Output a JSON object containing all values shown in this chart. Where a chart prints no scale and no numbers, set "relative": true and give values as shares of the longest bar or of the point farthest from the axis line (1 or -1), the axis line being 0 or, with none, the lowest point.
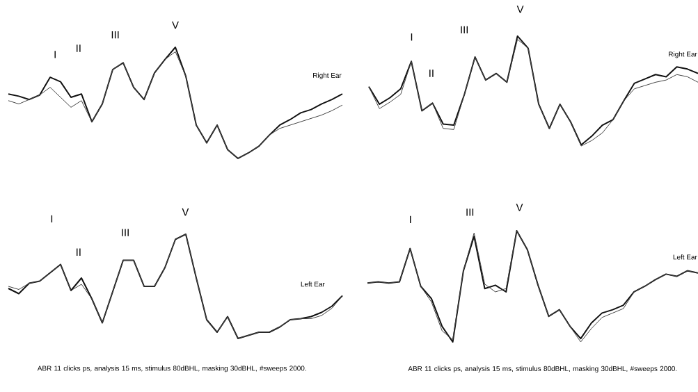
{
  "chart_data": [
    {
      "type": "line",
      "relative": true,
      "categories": [
        null,
        null,
        null,
        null,
        null,
        null,
        null,
        null,
        null,
        null,
        null,
        null,
        null,
        null,
        null,
        null,
        null,
        null,
        null,
        null,
        null,
        null,
        null,
        null,
        null,
        null,
        null,
        null,
        null,
        null,
        null,
        null,
        null
      ],
      "series": [
        {
          "color": "#111111",
          "values": [
            0.58,
            0.56,
            0.53,
            0.57,
            0.73,
            0.69,
            0.55,
            0.58,
            0.33,
            0.49,
            0.8,
            0.86,
            0.64,
            0.53,
            0.77,
            0.89,
            1,
            0.74,
            0.3,
            0.14,
            0.3,
            0.08,
            0,
            0.05,
            0.11,
            0.21,
            0.3,
            0.35,
            0.41,
            0.44,
            0.49,
            0.53,
            0.58
          ]
        },
        {
          "color": "#444444",
          "values": [
            0.52,
            0.49,
            0.53,
            0.57,
            0.64,
            0.55,
            0.46,
            0.52,
            0.33,
            0.49,
            0.8,
            0.86,
            0.64,
            0.53,
            0.77,
            0.89,
            0.96,
            0.74,
            0.3,
            0.14,
            0.3,
            0.08,
            0,
            0.05,
            0.11,
            0.21,
            0.27,
            0.3,
            0.33,
            0.36,
            0.39,
            0.43,
            0.48
          ]
        }
      ],
      "annotations": [
        "I",
        "II",
        "III",
        "V",
        "Right Ear"
      ]
    },
    {
      "type": "line",
      "relative": true,
      "categories": [
        null,
        null,
        null,
        null,
        null,
        null,
        null,
        null,
        null,
        null,
        null,
        null,
        null,
        null,
        null,
        null,
        null,
        null,
        null,
        null,
        null,
        null,
        null,
        null,
        null,
        null,
        null,
        null,
        null,
        null,
        null,
        null
      ],
      "series": [
        {
          "color": "#111111",
          "values": [
            0.54,
            0.38,
            0.44,
            0.52,
            0.77,
            0.32,
            0.39,
            0.2,
            0.19,
            0.47,
            0.81,
            0.6,
            0.66,
            0.58,
            1,
            0.89,
            0.38,
            0.16,
            0.38,
            0.22,
            0.01,
            0.09,
            0.19,
            0.24,
            0.41,
            0.57,
            0.61,
            0.65,
            0.63,
            0.72,
            0.7,
            0.66
          ]
        },
        {
          "color": "#444444",
          "values": [
            0.54,
            0.34,
            0.4,
            0.47,
            0.77,
            0.32,
            0.39,
            0.16,
            0.15,
            0.47,
            0.81,
            0.6,
            0.66,
            0.58,
            0.97,
            0.89,
            0.38,
            0.16,
            0.38,
            0.22,
            0,
            0.05,
            0.12,
            0.24,
            0.41,
            0.52,
            0.55,
            0.58,
            0.6,
            0.65,
            0.63,
            0.58
          ]
        }
      ],
      "annotations": [
        "I",
        "II",
        "III",
        "V",
        "Right Ear"
      ]
    },
    {
      "type": "line",
      "relative": true,
      "categories": [
        null,
        null,
        null,
        null,
        null,
        null,
        null,
        null,
        null,
        null,
        null,
        null,
        null,
        null,
        null,
        null,
        null,
        null,
        null,
        null,
        null,
        null,
        null,
        null,
        null,
        null,
        null,
        null,
        null,
        null,
        null,
        null,
        null
      ],
      "series": [
        {
          "color": "#111111",
          "values": [
            0.48,
            0.43,
            0.53,
            0.55,
            0.63,
            0.71,
            0.46,
            0.58,
            0.38,
            0.15,
            0.45,
            0.75,
            0.75,
            0.5,
            0.5,
            0.68,
            0.95,
            1,
            0.58,
            0.18,
            0.06,
            0.21,
            0,
            0.03,
            0.06,
            0.06,
            0.11,
            0.18,
            0.19,
            0.21,
            0.25,
            0.31,
            0.41
          ]
        },
        {
          "color": "#444444",
          "values": [
            0.5,
            0.47,
            0.53,
            0.55,
            0.63,
            0.71,
            0.46,
            0.52,
            0.38,
            0.15,
            0.45,
            0.75,
            0.75,
            0.5,
            0.5,
            0.68,
            0.95,
            1,
            0.58,
            0.18,
            0.06,
            0.21,
            0,
            0.03,
            0.06,
            0.06,
            0.11,
            0.18,
            0.19,
            0.19,
            0.22,
            0.29,
            0.41
          ]
        }
      ],
      "annotations": [
        "I",
        "II",
        "III",
        "V",
        "Left Ear",
        "ABR 11 clicks ps, analysis 15 ms, stimulus 80dBHL, masking 30dBHL, #sweeps 2000."
      ]
    },
    {
      "type": "line",
      "relative": true,
      "categories": [
        null,
        null,
        null,
        null,
        null,
        null,
        null,
        null,
        null,
        null,
        null,
        null,
        null,
        null,
        null,
        null,
        null,
        null,
        null,
        null,
        null,
        null,
        null,
        null,
        null,
        null,
        null,
        null,
        null,
        null,
        null,
        null
      ],
      "series": [
        {
          "color": "#111111",
          "values": [
            0.53,
            0.54,
            0.53,
            0.54,
            0.84,
            0.5,
            0.39,
            0.14,
            0,
            0.64,
            0.95,
            0.48,
            0.51,
            0.45,
            1,
            0.83,
            0.51,
            0.23,
            0.29,
            0.14,
            0.03,
            0.17,
            0.26,
            0.29,
            0.33,
            0.45,
            0.5,
            0.56,
            0.61,
            0.59,
            0.64,
            0.62
          ]
        },
        {
          "color": "#444444",
          "values": [
            0.53,
            0.54,
            0.53,
            0.54,
            0.84,
            0.5,
            0.36,
            0.1,
            0.02,
            0.64,
            0.98,
            0.52,
            0.45,
            0.48,
            1,
            0.83,
            0.51,
            0.23,
            0.29,
            0.14,
            0,
            0.12,
            0.22,
            0.26,
            0.3,
            0.45,
            0.5,
            0.56,
            0.61,
            0.59,
            0.64,
            0.62
          ]
        }
      ],
      "annotations": [
        "I",
        "III",
        "V",
        "Left Ear",
        "ABR 11 clicks ps, analysis 15 ms, stimulus 80dBHL, masking 30dBHL, #sweeps 2000."
      ]
    }
  ]
}
